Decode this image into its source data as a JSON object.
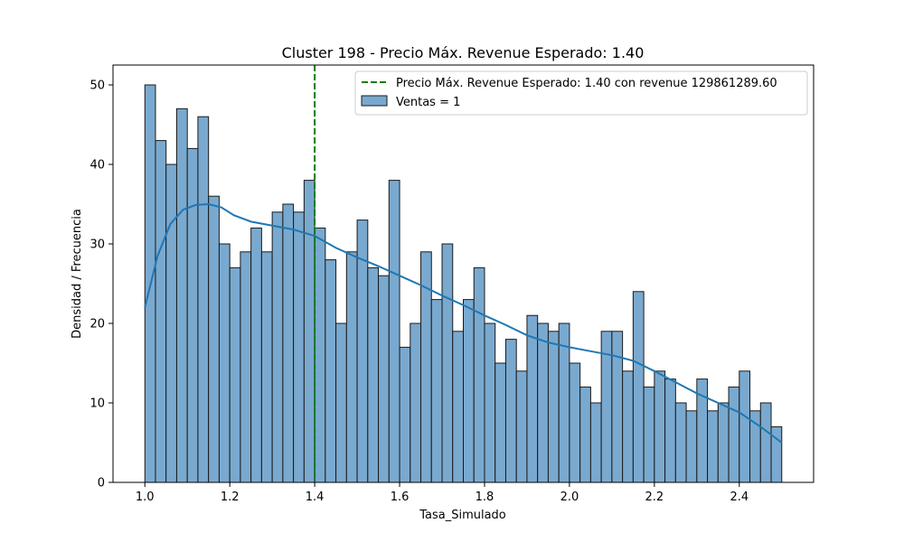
{
  "chart_data": {
    "type": "bar",
    "title": "Cluster 198 - Precio Máx. Revenue Esperado: 1.40",
    "xlabel": "Tasa_Simulado",
    "ylabel": "Densidad / Frecuencia",
    "xlim": [
      0.925,
      2.575
    ],
    "ylim": [
      0,
      52.5
    ],
    "xticks": [
      "1.0",
      "1.2",
      "1.4",
      "1.6",
      "1.8",
      "2.0",
      "2.2",
      "2.4"
    ],
    "yticks": [
      "0",
      "10",
      "20",
      "30",
      "40",
      "50"
    ],
    "grid": false,
    "legend_position": "top-right",
    "bins": {
      "start": 1.0,
      "end": 2.5,
      "count": 60,
      "counts": [
        50,
        43,
        40,
        47,
        42,
        46,
        36,
        30,
        27,
        29,
        32,
        29,
        34,
        35,
        34,
        38,
        32,
        28,
        20,
        29,
        33,
        27,
        26,
        38,
        17,
        20,
        29,
        23,
        30,
        19,
        23,
        27,
        20,
        15,
        18,
        14,
        21,
        20,
        19,
        20,
        15,
        12,
        10,
        19,
        19,
        14,
        24,
        12,
        14,
        13,
        10,
        9,
        13,
        9,
        10,
        12,
        14,
        9,
        10,
        7
      ]
    },
    "histogram_series": {
      "name": "Ventas = 1",
      "color": "#7aa9cf",
      "edge_color": "#1a1a1a"
    },
    "kde_series": {
      "color": "#1f77b4",
      "x": [
        1.0,
        1.03,
        1.06,
        1.09,
        1.12,
        1.15,
        1.18,
        1.21,
        1.25,
        1.3,
        1.35,
        1.4,
        1.45,
        1.5,
        1.55,
        1.6,
        1.65,
        1.7,
        1.75,
        1.8,
        1.85,
        1.9,
        1.95,
        2.0,
        2.05,
        2.1,
        2.15,
        2.2,
        2.25,
        2.3,
        2.35,
        2.4,
        2.45,
        2.5
      ],
      "y": [
        22,
        28.5,
        32.5,
        34.3,
        34.9,
        35.0,
        34.6,
        33.6,
        32.8,
        32.3,
        31.8,
        31.0,
        29.5,
        28.3,
        27.2,
        26.0,
        24.8,
        23.5,
        22.3,
        21.0,
        19.8,
        18.5,
        17.6,
        17.0,
        16.5,
        16.0,
        15.3,
        14.0,
        12.6,
        11.2,
        10.0,
        8.8,
        7.0,
        5.0
      ]
    },
    "reference_line": {
      "x": 1.4,
      "color": "#008000",
      "label": "Precio Máx. Revenue Esperado: 1.40 con revenue 129861289.60"
    }
  }
}
